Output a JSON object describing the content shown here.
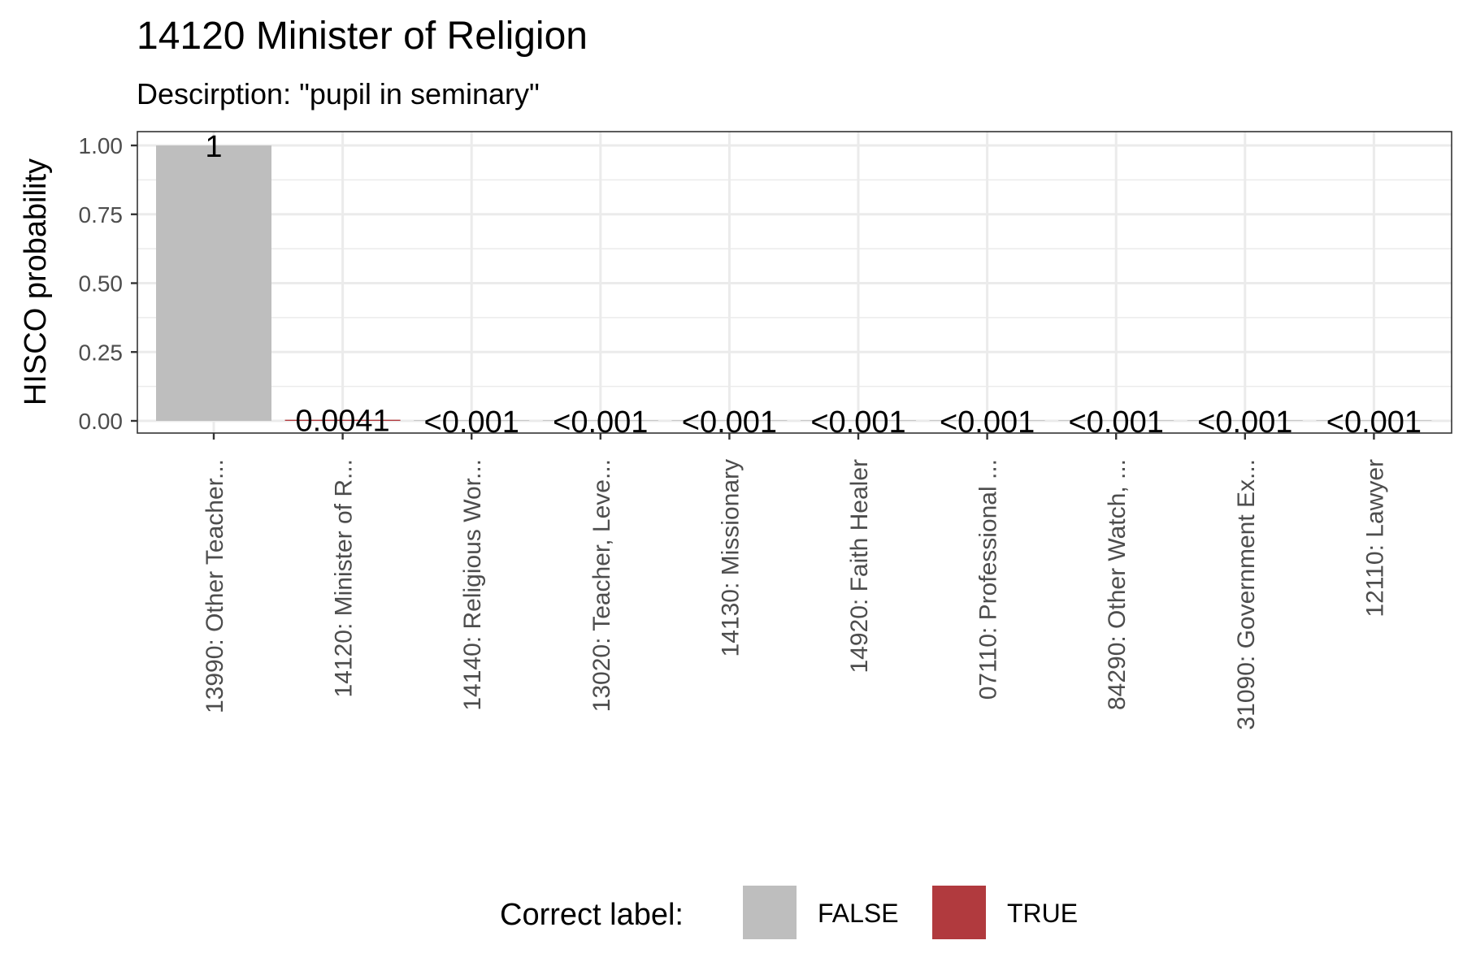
{
  "chart_data": {
    "type": "bar",
    "title": "14120 Minister of Religion",
    "subtitle": "Descirption: \"pupil in seminary\"",
    "xlabel": "",
    "ylabel": "HISCO probability",
    "ylim": [
      0,
      1.05
    ],
    "yticks": [
      "0.00",
      "0.25",
      "0.50",
      "0.75",
      "1.00"
    ],
    "ytick_values": [
      0,
      0.25,
      0.5,
      0.75,
      1.0
    ],
    "grid": true,
    "categories": [
      "13990: Other Teacher...",
      "14120: Minister of R...",
      "14140: Religious Wor...",
      "13020: Teacher, Leve...",
      "14130: Missionary",
      "14920: Faith Healer",
      "07110: Professional ...",
      "84290: Other Watch, ...",
      "31090: Government Ex...",
      "12110: Lawyer"
    ],
    "values": [
      1.0,
      0.0041,
      0.0005,
      0.0005,
      0.0005,
      0.0005,
      0.0005,
      0.0005,
      0.0005,
      0.0005
    ],
    "data_labels": [
      "1",
      "0.0041",
      "<0.001",
      "<0.001",
      "<0.001",
      "<0.001",
      "<0.001",
      "<0.001",
      "<0.001",
      "<0.001"
    ],
    "correct": [
      false,
      true,
      false,
      false,
      false,
      false,
      false,
      false,
      false,
      false
    ],
    "legend": {
      "title": "Correct label:",
      "position": "bottom",
      "entries": [
        {
          "label": "FALSE",
          "color": "#bebebe"
        },
        {
          "label": "TRUE",
          "color": "#b13a3e"
        }
      ]
    }
  }
}
